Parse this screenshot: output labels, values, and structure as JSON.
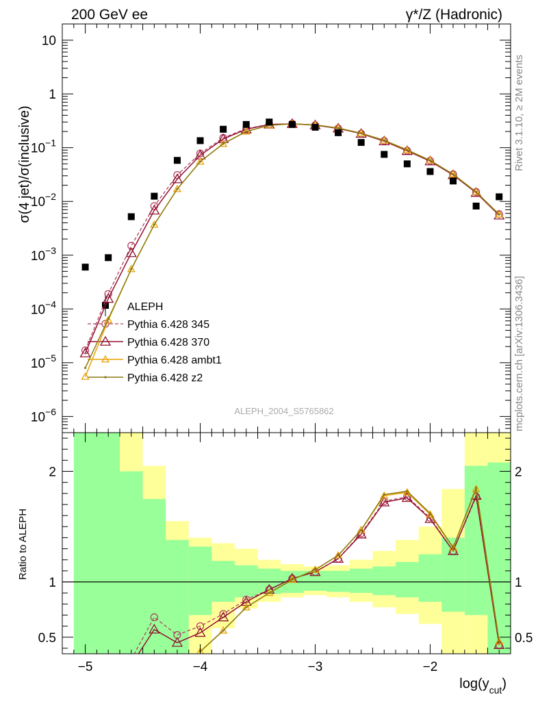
{
  "header": {
    "left": "200 GeV ee",
    "right": "γ*/Z (Hadronic)"
  },
  "side": {
    "top": "Rivet 3.1.10, ≥ 2M events",
    "bottom": "mcplots.cern.ch [arXiv:1306.3436]"
  },
  "watermark": "ALEPH_2004_S5765862",
  "colors": {
    "green": "#99ff99",
    "yellow": "#ffff99",
    "data": "#000000",
    "p345": "#b04060",
    "p370": "#901030",
    "ambt1": "#e8a000",
    "z2": "#8a7a10"
  },
  "chart_data": [
    {
      "type": "line",
      "panel": "main",
      "ylabel": "σ(4 jet)/σ(inclusive)",
      "xlim": [
        -5.2,
        -1.3
      ],
      "ylim": [
        5e-07,
        20
      ],
      "yscale": "log",
      "ytick_labels": [
        {
          "value": 1e-06,
          "base": "10",
          "exp": "−6"
        },
        {
          "value": 1e-05,
          "base": "10",
          "exp": "−5"
        },
        {
          "value": 0.0001,
          "base": "10",
          "exp": "−4"
        },
        {
          "value": 0.001,
          "base": "10",
          "exp": "−3"
        },
        {
          "value": 0.01,
          "base": "10",
          "exp": "−2"
        },
        {
          "value": 0.1,
          "base": "10",
          "exp": "−1"
        },
        {
          "value": 1,
          "base": "1",
          "exp": ""
        },
        {
          "value": 10,
          "base": "10",
          "exp": ""
        }
      ],
      "legend_position": "bottom-left",
      "data_series": {
        "name": "ALEPH",
        "x": [
          -5.0,
          -4.8,
          -4.6,
          -4.4,
          -4.2,
          -4.0,
          -3.8,
          -3.6,
          -3.4,
          -3.2,
          -3.0,
          -2.8,
          -2.6,
          -2.4,
          -2.2,
          -2.0,
          -1.8,
          -1.6,
          -1.4
        ],
        "y": [
          0.0006,
          0.0009,
          0.0052,
          0.0125,
          0.058,
          0.135,
          0.22,
          0.27,
          0.3,
          0.27,
          0.24,
          0.19,
          0.125,
          0.075,
          0.05,
          0.036,
          0.024,
          0.0082,
          0.0122
        ]
      },
      "series": [
        {
          "name": "Pythia 6.428 345",
          "x": [
            -5.0,
            -4.8,
            -4.6,
            -4.4,
            -4.2,
            -4.0,
            -3.8,
            -3.6,
            -3.4,
            -3.2,
            -3.0,
            -2.8,
            -2.6,
            -2.4,
            -2.2,
            -2.0,
            -1.8,
            -1.6,
            -1.4
          ],
          "y": [
            1.7e-05,
            0.00019,
            0.0015,
            0.0082,
            0.031,
            0.078,
            0.152,
            0.225,
            0.272,
            0.278,
            0.262,
            0.228,
            0.182,
            0.134,
            0.088,
            0.057,
            0.032,
            0.015,
            0.0058
          ]
        },
        {
          "name": "Pythia 6.428 370",
          "x": [
            -5.0,
            -4.8,
            -4.6,
            -4.4,
            -4.2,
            -4.0,
            -3.8,
            -3.6,
            -3.4,
            -3.2,
            -3.0,
            -2.8,
            -2.6,
            -2.4,
            -2.2,
            -2.0,
            -1.8,
            -1.6,
            -1.4
          ],
          "y": [
            1.5e-05,
            0.000155,
            0.0011,
            0.0068,
            0.026,
            0.072,
            0.145,
            0.22,
            0.27,
            0.278,
            0.262,
            0.228,
            0.182,
            0.132,
            0.087,
            0.056,
            0.031,
            0.0145,
            0.0055
          ]
        },
        {
          "name": "Pythia 6.428 ambt1",
          "x": [
            -5.0,
            -4.8,
            -4.6,
            -4.4,
            -4.2,
            -4.0,
            -3.8,
            -3.6,
            -3.4,
            -3.2,
            -3.0,
            -2.8,
            -2.6,
            -2.4,
            -2.2,
            -2.0,
            -1.8,
            -1.6,
            -1.4
          ],
          "y": [
            5.5e-06,
            6.2e-05,
            0.00055,
            0.0037,
            0.017,
            0.055,
            0.118,
            0.2,
            0.26,
            0.278,
            0.265,
            0.232,
            0.185,
            0.136,
            0.09,
            0.058,
            0.032,
            0.015,
            0.0057
          ]
        },
        {
          "name": "Pythia 6.428 z2",
          "x": [
            -5.0,
            -4.8,
            -4.6,
            -4.4,
            -4.2,
            -4.0,
            -3.8,
            -3.6,
            -3.4,
            -3.2,
            -3.0,
            -2.8,
            -2.6,
            -2.4,
            -2.2,
            -2.0,
            -1.8,
            -1.6,
            -1.4
          ],
          "y": [
            8e-06,
            6.5e-05,
            0.00055,
            0.0037,
            0.017,
            0.055,
            0.118,
            0.2,
            0.26,
            0.278,
            0.265,
            0.232,
            0.186,
            0.137,
            0.091,
            0.058,
            0.032,
            0.015,
            0.0057
          ]
        }
      ]
    },
    {
      "type": "line",
      "panel": "ratio",
      "xlabel": "log(y",
      "xlabel_sub": "cut",
      "xlabel_close": ")",
      "ylabel": "Ratio to ALEPH",
      "xlim": [
        -5.2,
        -1.3
      ],
      "ylim": [
        0.35,
        2.35
      ],
      "xticks": [
        -5,
        -4,
        -3,
        -2
      ],
      "xtick_labels": [
        "−5",
        "−4",
        "−3",
        "−2"
      ],
      "yticks": [
        0.5,
        1,
        2
      ],
      "ytick_labels": [
        "0.5",
        "1",
        "2"
      ],
      "bands": {
        "edges": [
          -5.1,
          -4.9,
          -4.7,
          -4.5,
          -4.3,
          -4.1,
          -3.9,
          -3.7,
          -3.5,
          -3.3,
          -3.1,
          -2.9,
          -2.7,
          -2.5,
          -2.3,
          -2.1,
          -1.9,
          -1.7,
          -1.5,
          -1.3
        ],
        "green_lo": [
          0.35,
          0.35,
          0.35,
          0.35,
          0.35,
          0.7,
          0.82,
          0.86,
          0.89,
          0.9,
          0.92,
          0.91,
          0.9,
          0.88,
          0.86,
          0.82,
          0.73,
          0.7,
          0.35
        ],
        "green_hi": [
          2.35,
          2.35,
          2.0,
          1.75,
          1.38,
          1.32,
          1.19,
          1.15,
          1.12,
          1.1,
          1.1,
          1.1,
          1.12,
          1.14,
          1.18,
          1.25,
          1.4,
          2.05,
          2.08
        ],
        "yellow_lo": [
          0.35,
          0.35,
          0.35,
          0.35,
          0.35,
          0.35,
          0.58,
          0.76,
          0.82,
          0.86,
          0.88,
          0.86,
          0.82,
          0.77,
          0.71,
          0.62,
          0.35,
          0.35,
          0.35
        ],
        "yellow_hi": [
          2.35,
          2.35,
          2.35,
          2.05,
          1.55,
          1.4,
          1.35,
          1.3,
          1.2,
          1.16,
          1.14,
          1.15,
          1.2,
          1.28,
          1.38,
          1.5,
          1.84,
          2.35,
          2.35
        ]
      },
      "series": [
        {
          "name": "Pythia 6.428 345",
          "x": [
            -4.6,
            -4.4,
            -4.2,
            -4.0,
            -3.8,
            -3.6,
            -3.4,
            -3.2,
            -3.0,
            -2.8,
            -2.6,
            -2.4,
            -2.2,
            -2.0,
            -1.8,
            -1.6,
            -1.4
          ],
          "y": [
            0.3,
            0.68,
            0.52,
            0.6,
            0.71,
            0.84,
            0.93,
            1.03,
            1.09,
            1.21,
            1.44,
            1.73,
            1.77,
            1.58,
            1.28,
            1.77,
            0.43
          ]
        },
        {
          "name": "Pythia 6.428 370",
          "x": [
            -4.6,
            -4.4,
            -4.2,
            -4.0,
            -3.8,
            -3.6,
            -3.4,
            -3.2,
            -3.0,
            -2.8,
            -2.6,
            -2.4,
            -2.2,
            -2.0,
            -1.8,
            -1.6,
            -1.4
          ],
          "y": [
            0.25,
            0.57,
            0.45,
            0.54,
            0.68,
            0.82,
            0.93,
            1.03,
            1.09,
            1.21,
            1.43,
            1.72,
            1.76,
            1.57,
            1.28,
            1.78,
            0.43
          ]
        },
        {
          "name": "Pythia 6.428 ambt1",
          "x": [
            -4.0,
            -3.8,
            -3.6,
            -3.4,
            -3.2,
            -3.0,
            -2.8,
            -2.6,
            -2.4,
            -2.2,
            -2.0,
            -1.8,
            -1.6,
            -1.4
          ],
          "y": [
            0.37,
            0.56,
            0.77,
            0.9,
            1.02,
            1.11,
            1.24,
            1.47,
            1.78,
            1.81,
            1.61,
            1.31,
            1.84,
            0.46
          ]
        },
        {
          "name": "Pythia 6.428 z2",
          "x": [
            -4.0,
            -3.8,
            -3.6,
            -3.4,
            -3.2,
            -3.0,
            -2.8,
            -2.6,
            -2.4,
            -2.2,
            -2.0,
            -1.8,
            -1.6,
            -1.4
          ],
          "y": [
            0.37,
            0.56,
            0.77,
            0.9,
            1.02,
            1.11,
            1.24,
            1.47,
            1.79,
            1.82,
            1.62,
            1.31,
            1.85,
            0.46
          ]
        }
      ]
    }
  ]
}
